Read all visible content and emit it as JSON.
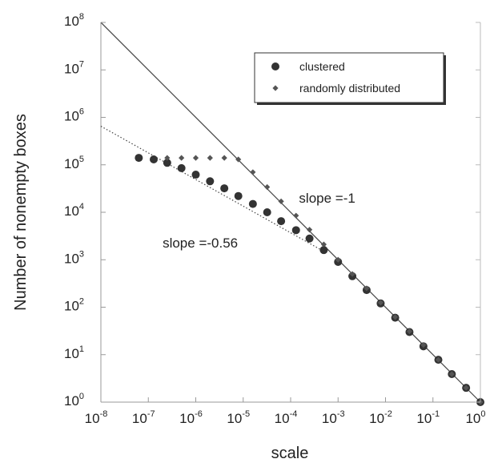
{
  "chart_data": {
    "type": "scatter",
    "xlabel": "scale",
    "ylabel": "Number of nonempty boxes",
    "xscale": "log",
    "yscale": "log",
    "xlim": [
      1e-08,
      1
    ],
    "ylim": [
      1,
      100000000.0
    ],
    "x_ticks": [
      {
        "base": "10",
        "exp": "-8",
        "value": 1e-08
      },
      {
        "base": "10",
        "exp": "-7",
        "value": 1e-07
      },
      {
        "base": "10",
        "exp": "-6",
        "value": 1e-06
      },
      {
        "base": "10",
        "exp": "-5",
        "value": 1e-05
      },
      {
        "base": "10",
        "exp": "-4",
        "value": 0.0001
      },
      {
        "base": "10",
        "exp": "-3",
        "value": 0.001
      },
      {
        "base": "10",
        "exp": "-2",
        "value": 0.01
      },
      {
        "base": "10",
        "exp": "-1",
        "value": 0.1
      },
      {
        "base": "10",
        "exp": "0",
        "value": 1
      }
    ],
    "y_ticks": [
      {
        "base": "10",
        "exp": "0",
        "value": 1
      },
      {
        "base": "10",
        "exp": "1",
        "value": 10
      },
      {
        "base": "10",
        "exp": "2",
        "value": 100
      },
      {
        "base": "10",
        "exp": "3",
        "value": 1000
      },
      {
        "base": "10",
        "exp": "4",
        "value": 10000
      },
      {
        "base": "10",
        "exp": "5",
        "value": 100000
      },
      {
        "base": "10",
        "exp": "6",
        "value": 1000000
      },
      {
        "base": "10",
        "exp": "7",
        "value": 10000000
      },
      {
        "base": "10",
        "exp": "8",
        "value": 100000000
      }
    ],
    "legend": {
      "position": "top-right"
    },
    "series": [
      {
        "name": "clustered",
        "marker": "circle",
        "color": "#333333",
        "points": [
          {
            "x": 6.3e-08,
            "y": 140000
          },
          {
            "x": 1.3e-07,
            "y": 130000
          },
          {
            "x": 2.5e-07,
            "y": 110000
          },
          {
            "x": 5e-07,
            "y": 85000
          },
          {
            "x": 1e-06,
            "y": 62000
          },
          {
            "x": 2e-06,
            "y": 45000
          },
          {
            "x": 4e-06,
            "y": 32000
          },
          {
            "x": 7.9e-06,
            "y": 22000
          },
          {
            "x": 1.6e-05,
            "y": 15000
          },
          {
            "x": 3.2e-05,
            "y": 10000
          },
          {
            "x": 6.3e-05,
            "y": 6500
          },
          {
            "x": 0.00013,
            "y": 4200
          },
          {
            "x": 0.00025,
            "y": 2800
          },
          {
            "x": 0.0005,
            "y": 1600
          },
          {
            "x": 0.001,
            "y": 900
          },
          {
            "x": 0.002,
            "y": 450
          },
          {
            "x": 0.004,
            "y": 230
          },
          {
            "x": 0.0079,
            "y": 120
          },
          {
            "x": 0.016,
            "y": 60
          },
          {
            "x": 0.032,
            "y": 30
          },
          {
            "x": 0.063,
            "y": 15
          },
          {
            "x": 0.13,
            "y": 7.8
          },
          {
            "x": 0.25,
            "y": 3.9
          },
          {
            "x": 0.5,
            "y": 2
          },
          {
            "x": 1,
            "y": 1
          }
        ]
      },
      {
        "name": "randomly distributed",
        "marker": "diamond",
        "color": "#555555",
        "points": [
          {
            "x": 2.5e-07,
            "y": 140000
          },
          {
            "x": 5e-07,
            "y": 140000
          },
          {
            "x": 1e-06,
            "y": 140000
          },
          {
            "x": 2e-06,
            "y": 140000
          },
          {
            "x": 4e-06,
            "y": 140000
          },
          {
            "x": 7.9e-06,
            "y": 130000
          },
          {
            "x": 1.6e-05,
            "y": 70000
          },
          {
            "x": 3.2e-05,
            "y": 34000
          },
          {
            "x": 6.3e-05,
            "y": 17000
          },
          {
            "x": 0.00013,
            "y": 8500
          },
          {
            "x": 0.00025,
            "y": 4300
          },
          {
            "x": 0.0005,
            "y": 2100
          },
          {
            "x": 0.001,
            "y": 1000
          },
          {
            "x": 0.002,
            "y": 500
          },
          {
            "x": 0.004,
            "y": 250
          },
          {
            "x": 0.0079,
            "y": 125
          },
          {
            "x": 0.016,
            "y": 62
          },
          {
            "x": 0.032,
            "y": 31
          },
          {
            "x": 0.063,
            "y": 16
          },
          {
            "x": 0.13,
            "y": 7.8
          },
          {
            "x": 0.25,
            "y": 3.9
          },
          {
            "x": 0.5,
            "y": 2
          },
          {
            "x": 1,
            "y": 1
          }
        ]
      }
    ],
    "fit_lines": [
      {
        "label": "slope =-1",
        "style": "solid",
        "color": "#444444",
        "from": {
          "x": 1e-08,
          "y": 100000000
        },
        "to": {
          "x": 1,
          "y": 1
        }
      },
      {
        "label": "slope =-0.56",
        "style": "dotted",
        "color": "#444444",
        "from": {
          "x": 1e-08,
          "y": 650000
        },
        "to": {
          "x": 0.0005,
          "y": 1500
        }
      }
    ],
    "annotations": [
      {
        "text": "slope =-1",
        "x": 0.00015,
        "y": 16000
      },
      {
        "text": "slope =-0.56",
        "x": 2e-07,
        "y": 1800
      }
    ]
  }
}
